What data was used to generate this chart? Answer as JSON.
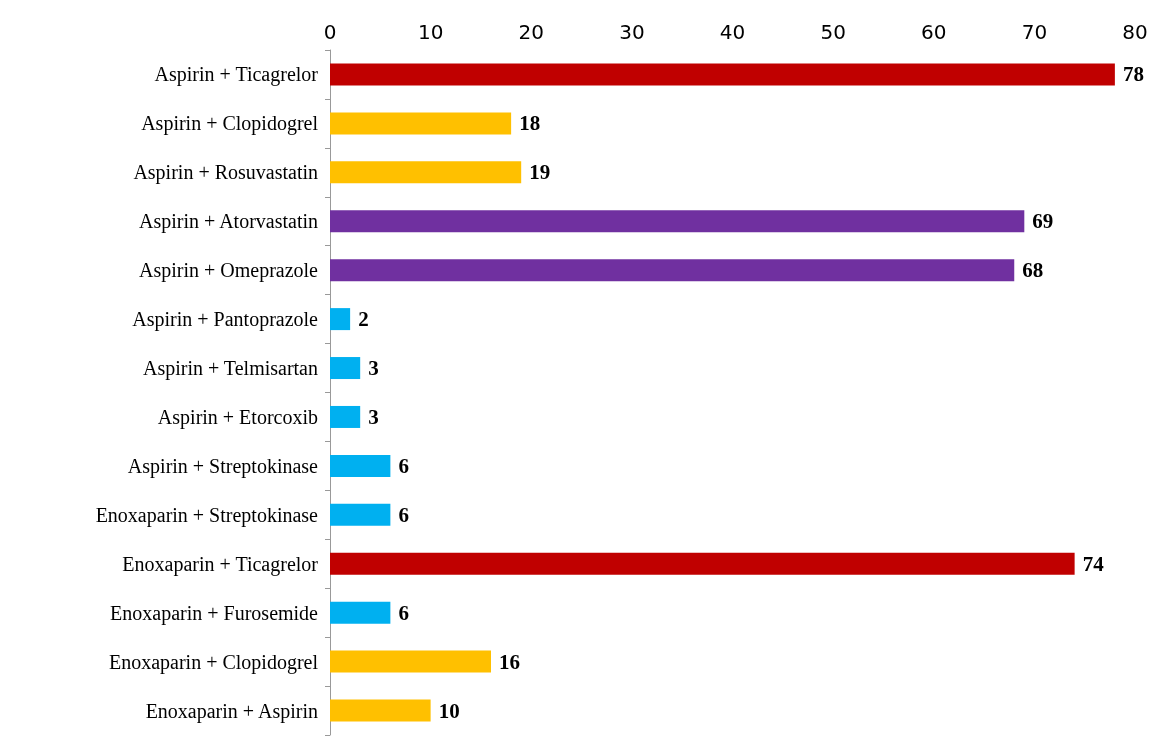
{
  "chart_data": {
    "type": "bar",
    "orientation": "horizontal",
    "categories": [
      "Aspirin + Ticagrelor",
      "Aspirin + Clopidogrel",
      "Aspirin + Rosuvastatin",
      "Aspirin + Atorvastatin",
      "Aspirin + Omeprazole",
      "Aspirin + Pantoprazole",
      "Aspirin + Telmisartan",
      "Aspirin + Etorcoxib",
      "Aspirin + Streptokinase",
      "Enoxaparin + Streptokinase",
      "Enoxaparin + Ticagrelor",
      "Enoxaparin + Furosemide",
      "Enoxaparin + Clopidogrel",
      "Enoxaparin + Aspirin"
    ],
    "values": [
      78,
      18,
      19,
      69,
      68,
      2,
      3,
      3,
      6,
      6,
      74,
      6,
      16,
      10
    ],
    "colors": [
      "#c00000",
      "#ffc000",
      "#ffc000",
      "#7030a0",
      "#7030a0",
      "#00b0f0",
      "#00b0f0",
      "#00b0f0",
      "#00b0f0",
      "#00b0f0",
      "#c00000",
      "#00b0f0",
      "#ffc000",
      "#ffc000"
    ],
    "xlim": [
      0,
      80
    ],
    "xticks": [
      0,
      10,
      20,
      30,
      40,
      50,
      60,
      70,
      80
    ],
    "data_labels": true
  }
}
